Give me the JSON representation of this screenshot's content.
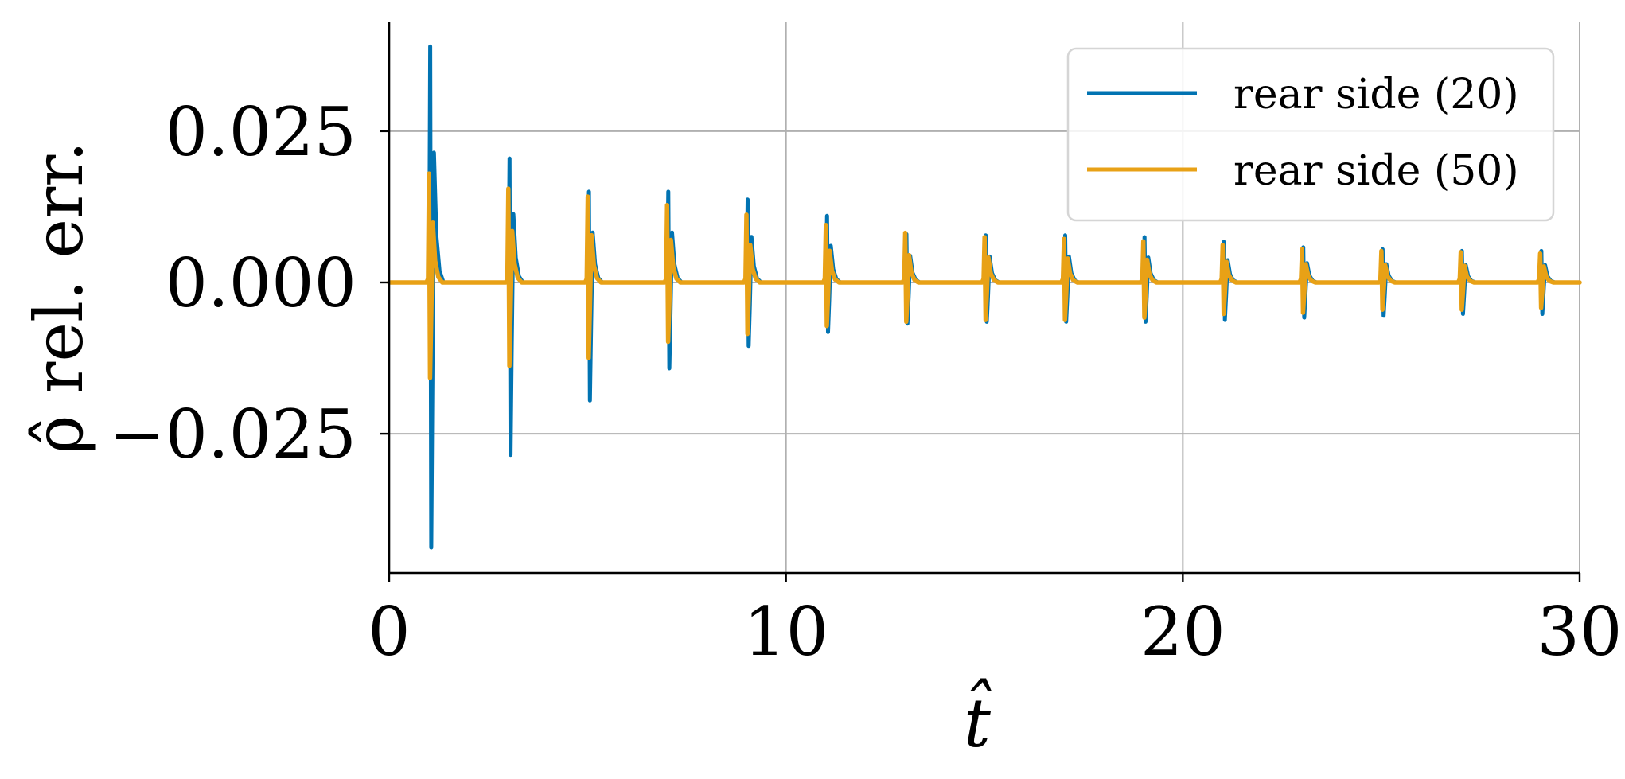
{
  "chart_data": {
    "type": "line",
    "title": "",
    "xlabel": "t̂",
    "ylabel": "ρ̂ rel. err.",
    "xlim": [
      0,
      30
    ],
    "ylim": [
      -0.048,
      0.043
    ],
    "x_ticks": [
      0,
      10,
      20,
      30
    ],
    "x_tick_labels": [
      "0",
      "10",
      "20",
      "30"
    ],
    "y_ticks": [
      0.025,
      0.0,
      -0.025
    ],
    "y_tick_labels": [
      "0.025",
      "0.000",
      "−0.025"
    ],
    "grid": true,
    "legend_position": "top-right",
    "colors": {
      "series_20": "#0173b2",
      "series_50": "#e8a116",
      "grid": "#b0b0b0",
      "axis": "#000000"
    },
    "series": [
      {
        "name": "rear side (20)",
        "pulse_times": [
          1.0,
          3.0,
          5.0,
          7.0,
          9.0,
          11.0,
          13.0,
          15.0,
          17.0,
          19.0,
          21.0,
          23.0,
          25.0,
          27.0,
          29.0
        ],
        "peak_max": [
          0.039,
          0.0205,
          0.015,
          0.015,
          0.0137,
          0.011,
          0.008,
          0.0078,
          0.0078,
          0.0075,
          0.0067,
          0.0058,
          0.0055,
          0.0052,
          0.0052
        ],
        "peak_min": [
          -0.0438,
          -0.0285,
          -0.0195,
          -0.0142,
          -0.0105,
          -0.0082,
          -0.0068,
          -0.0065,
          -0.0065,
          -0.0065,
          -0.0062,
          -0.0058,
          -0.0055,
          -0.0052,
          -0.0052
        ]
      },
      {
        "name": "rear side (50)",
        "pulse_times": [
          1.0,
          3.0,
          5.0,
          7.0,
          9.0,
          11.0,
          13.0,
          15.0,
          17.0,
          19.0,
          21.0,
          23.0,
          25.0,
          27.0,
          29.0
        ],
        "peak_max": [
          0.018,
          0.0155,
          0.0142,
          0.0128,
          0.0112,
          0.0095,
          0.0082,
          0.0075,
          0.0072,
          0.0068,
          0.0062,
          0.0055,
          0.0052,
          0.005,
          0.0048
        ],
        "peak_min": [
          -0.0158,
          -0.0138,
          -0.0125,
          -0.0098,
          -0.0085,
          -0.0072,
          -0.0065,
          -0.0062,
          -0.0062,
          -0.0058,
          -0.0052,
          -0.005,
          -0.0045,
          -0.0045,
          -0.0042
        ]
      }
    ]
  }
}
